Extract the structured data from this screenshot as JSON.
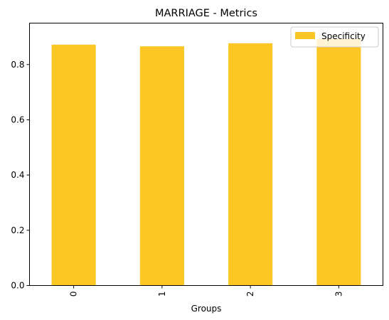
{
  "chart_data": {
    "type": "bar",
    "title": "MARRIAGE - Metrics",
    "xlabel": "Groups",
    "ylabel": "",
    "categories": [
      "0",
      "1",
      "2",
      "3"
    ],
    "series": [
      {
        "name": "Specificity",
        "values": [
          0.872,
          0.866,
          0.877,
          0.893
        ],
        "color": "#fcc624"
      }
    ],
    "ylim": [
      0,
      0.95
    ],
    "yticks": [
      "0.0",
      "0.2",
      "0.4",
      "0.6",
      "0.8"
    ],
    "ytick_values": [
      0,
      0.2,
      0.4,
      0.6,
      0.8
    ],
    "xtick_rotation": 90,
    "grid": false,
    "legend_position": "top-right"
  }
}
